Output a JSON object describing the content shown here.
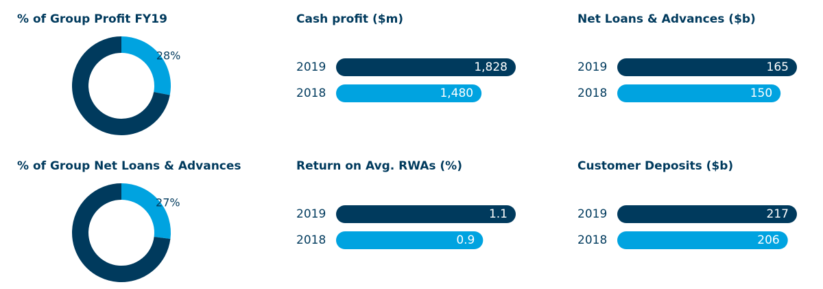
{
  "chart_data": [
    {
      "type": "pie",
      "title": "% of Group Profit FY19",
      "values": [
        28,
        72
      ],
      "value_labels": [
        "28%",
        null
      ],
      "colors": [
        "#00a3e0",
        "#003a5d"
      ]
    },
    {
      "type": "bar",
      "title": "Cash profit ($m)",
      "categories": [
        "2019",
        "2018"
      ],
      "values": [
        1828,
        1480
      ],
      "value_labels": [
        "1,828",
        "1,480"
      ],
      "colors": [
        "#003a5d",
        "#00a3e0"
      ]
    },
    {
      "type": "bar",
      "title": "Net Loans & Advances ($b)",
      "categories": [
        "2019",
        "2018"
      ],
      "values": [
        165,
        150
      ],
      "colors": [
        "#003a5d",
        "#00a3e0"
      ]
    },
    {
      "type": "pie",
      "title": "% of Group Net Loans & Advances",
      "values": [
        27,
        73
      ],
      "value_labels": [
        "27%",
        null
      ],
      "colors": [
        "#00a3e0",
        "#003a5d"
      ]
    },
    {
      "type": "bar",
      "title": "Return on Avg. RWAs (%)",
      "categories": [
        "2019",
        "2018"
      ],
      "values": [
        1.1,
        0.9
      ],
      "colors": [
        "#003a5d",
        "#00a3e0"
      ]
    },
    {
      "type": "bar",
      "title": "Customer Deposits ($b)",
      "categories": [
        "2019",
        "2018"
      ],
      "values": [
        217,
        206
      ],
      "colors": [
        "#003a5d",
        "#00a3e0"
      ]
    }
  ]
}
